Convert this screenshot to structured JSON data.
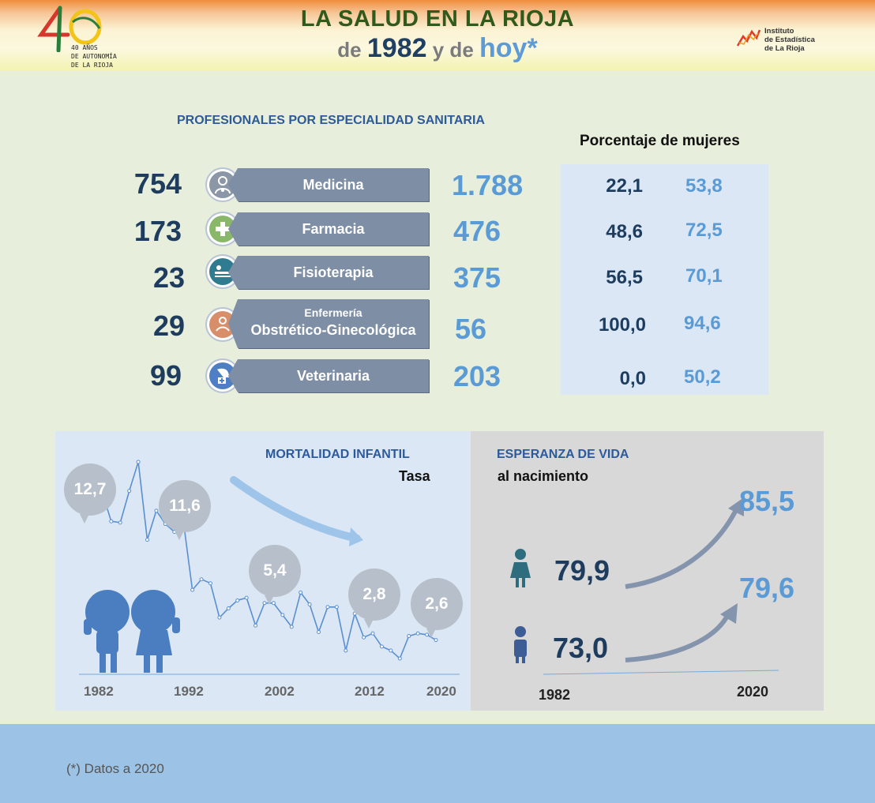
{
  "header": {
    "title_line1": "LA SALUD EN LA RIOJA",
    "title_de": "de",
    "title_year": "1982",
    "title_y_de": "y de",
    "title_hoy": "hoy*",
    "logo_40_text": "40 AÑOS\nDE AUTONOMÍA\nDE LA RIOJA",
    "institute_name": "Instituto\nde Estadística\nde La Rioja"
  },
  "profesionales": {
    "title": "PROFESIONALES POR ESPECIALIDAD SANITARIA",
    "women_title": "Porcentaje de mujeres",
    "rows": [
      {
        "label": "Medicina",
        "label_small": "",
        "v1982": "754",
        "vnow": "1.788",
        "w1982": "22,1",
        "wnow": "53,8",
        "icon": "doctor-icon",
        "color": "#8b96a6"
      },
      {
        "label": "Farmacia",
        "label_small": "",
        "v1982": "173",
        "vnow": "476",
        "w1982": "48,6",
        "wnow": "72,5",
        "icon": "pharmacy-cross-icon",
        "color": "#8ab86a"
      },
      {
        "label": "Fisioterapia",
        "label_small": "",
        "v1982": "23",
        "vnow": "375",
        "w1982": "56,5",
        "wnow": "70,1",
        "icon": "physiotherapy-icon",
        "color": "#2f7b90"
      },
      {
        "label": "Obstrético-Ginecológica",
        "label_small": "Enfermería",
        "v1982": "29",
        "vnow": "56",
        "w1982": "100,0",
        "wnow": "94,6",
        "icon": "midwife-icon",
        "color": "#d98e6a"
      },
      {
        "label": "Veterinaria",
        "label_small": "",
        "v1982": "99",
        "vnow": "203",
        "w1982": "0,0",
        "wnow": "50,2",
        "icon": "veterinary-dog-icon",
        "color": "#4f7fc3"
      }
    ]
  },
  "mortalidad": {
    "title": "MORTALIDAD INFANTIL",
    "subtitle": "Tasa",
    "xticks": [
      "1982",
      "1992",
      "2002",
      "2012",
      "2020"
    ],
    "callouts": [
      {
        "year": 1982,
        "label": "12,7"
      },
      {
        "year": 1992,
        "label": "11,6"
      },
      {
        "year": 2002,
        "label": "5,4"
      },
      {
        "year": 2012,
        "label": "2,8"
      },
      {
        "year": 2020,
        "label": "2,6"
      }
    ],
    "chart_data": {
      "type": "line",
      "title": "MORTALIDAD INFANTIL",
      "ylabel": "Tasa",
      "xlim": [
        1982,
        2020
      ],
      "ylim": [
        0,
        17
      ],
      "x": [
        1982,
        1983,
        1984,
        1985,
        1986,
        1987,
        1988,
        1989,
        1990,
        1991,
        1992,
        1993,
        1994,
        1995,
        1996,
        1997,
        1998,
        1999,
        2000,
        2001,
        2002,
        2003,
        2004,
        2005,
        2006,
        2007,
        2008,
        2009,
        2010,
        2011,
        2012,
        2013,
        2014,
        2015,
        2016,
        2017,
        2018,
        2019,
        2020
      ],
      "y": [
        12.7,
        13.8,
        11.6,
        11.5,
        13.9,
        16.1,
        10.2,
        12.4,
        11.4,
        10.8,
        11.6,
        6.4,
        7.2,
        6.9,
        4.3,
        5.0,
        5.6,
        5.8,
        3.7,
        5.4,
        5.4,
        4.5,
        3.6,
        6.2,
        5.3,
        3.2,
        5.1,
        5.1,
        1.8,
        4.6,
        2.8,
        3.1,
        2.1,
        1.8,
        1.2,
        2.9,
        3.1,
        3.0,
        2.6
      ]
    }
  },
  "esperanza": {
    "title": "ESPERANZA DE VIDA",
    "subtitle": "al nacimiento",
    "xticks": [
      "1982",
      "2020"
    ],
    "women_1982": "79,9",
    "women_2020": "85,5",
    "men_1982": "73,0",
    "men_2020": "79,6",
    "colors": {
      "value_1982": "#1e3d5e",
      "value_2020": "#5a9bd6",
      "arrow": "#8494ad"
    }
  },
  "footer": {
    "note": "(*) Datos a 2020"
  }
}
